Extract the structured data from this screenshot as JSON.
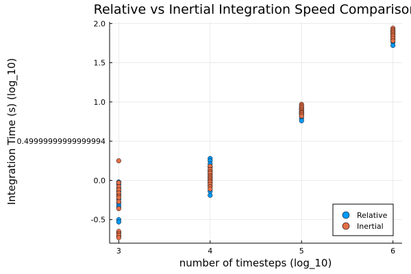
{
  "chart_data": {
    "type": "scatter",
    "title": "Relative vs Inertial Integration Speed Comparison",
    "xlabel": "number of timesteps (log_10)",
    "ylabel": "Integration Time (s) (log_10)",
    "xlim": [
      2.9,
      6.1
    ],
    "ylim": [
      -0.8,
      2.02
    ],
    "x_ticks": [
      3,
      4,
      5,
      6
    ],
    "x_tick_labels": [
      "3",
      "4",
      "5",
      "6"
    ],
    "y_ticks": [
      -0.5,
      0.0,
      0.49999999999999994,
      1.0,
      1.5,
      2.0
    ],
    "y_tick_labels": [
      "-0.5",
      "0.0",
      "0.49999999999999994",
      "1.0",
      "1.5",
      "2.0"
    ],
    "grid": true,
    "legend_position": "bottom-right",
    "series": [
      {
        "name": "Relative",
        "color": "#009AFA",
        "points": [
          [
            3,
            -0.02
          ],
          [
            3,
            -0.05
          ],
          [
            3,
            -0.1
          ],
          [
            3,
            -0.14
          ],
          [
            3,
            -0.18
          ],
          [
            3,
            -0.24
          ],
          [
            3,
            -0.28
          ],
          [
            3,
            -0.31
          ],
          [
            3,
            -0.34
          ],
          [
            3,
            -0.5
          ],
          [
            3,
            -0.53
          ],
          [
            3,
            -0.66
          ],
          [
            3,
            -0.71
          ],
          [
            4,
            0.28
          ],
          [
            4,
            0.25
          ],
          [
            4,
            0.21
          ],
          [
            4,
            0.17
          ],
          [
            4,
            0.12
          ],
          [
            4,
            0.08
          ],
          [
            4,
            0.04
          ],
          [
            4,
            0.0
          ],
          [
            4,
            -0.03
          ],
          [
            4,
            -0.07
          ],
          [
            4,
            -0.14
          ],
          [
            4,
            -0.19
          ],
          [
            5,
            0.92
          ],
          [
            5,
            0.9
          ],
          [
            5,
            0.87
          ],
          [
            5,
            0.85
          ],
          [
            5,
            0.82
          ],
          [
            5,
            0.79
          ],
          [
            5,
            0.76
          ],
          [
            6,
            1.9
          ],
          [
            6,
            1.86
          ],
          [
            6,
            1.83
          ],
          [
            6,
            1.8
          ],
          [
            6,
            1.76
          ],
          [
            6,
            1.72
          ]
        ]
      },
      {
        "name": "Inertial",
        "color": "#E36F47",
        "points": [
          [
            3,
            0.25
          ],
          [
            3,
            -0.03
          ],
          [
            3,
            -0.08
          ],
          [
            3,
            -0.12
          ],
          [
            3,
            -0.16
          ],
          [
            3,
            -0.2
          ],
          [
            3,
            -0.22
          ],
          [
            3,
            -0.27
          ],
          [
            3,
            -0.36
          ],
          [
            3,
            -0.65
          ],
          [
            3,
            -0.68
          ],
          [
            3,
            -0.7
          ],
          [
            3,
            -0.73
          ],
          [
            4,
            0.18
          ],
          [
            4,
            0.14
          ],
          [
            4,
            0.11
          ],
          [
            4,
            0.09
          ],
          [
            4,
            0.06
          ],
          [
            4,
            0.04
          ],
          [
            4,
            0.02
          ],
          [
            4,
            0.0
          ],
          [
            4,
            -0.02
          ],
          [
            4,
            -0.05
          ],
          [
            4,
            -0.08
          ],
          [
            4,
            -0.11
          ],
          [
            5,
            0.97
          ],
          [
            5,
            0.95
          ],
          [
            5,
            0.93
          ],
          [
            5,
            0.91
          ],
          [
            5,
            0.89
          ],
          [
            5,
            0.87
          ],
          [
            5,
            0.86
          ],
          [
            5,
            0.84
          ],
          [
            5,
            0.82
          ],
          [
            6,
            1.94
          ],
          [
            6,
            1.92
          ],
          [
            6,
            1.9
          ],
          [
            6,
            1.88
          ],
          [
            6,
            1.86
          ],
          [
            6,
            1.84
          ],
          [
            6,
            1.81
          ],
          [
            6,
            1.78
          ]
        ]
      }
    ]
  }
}
